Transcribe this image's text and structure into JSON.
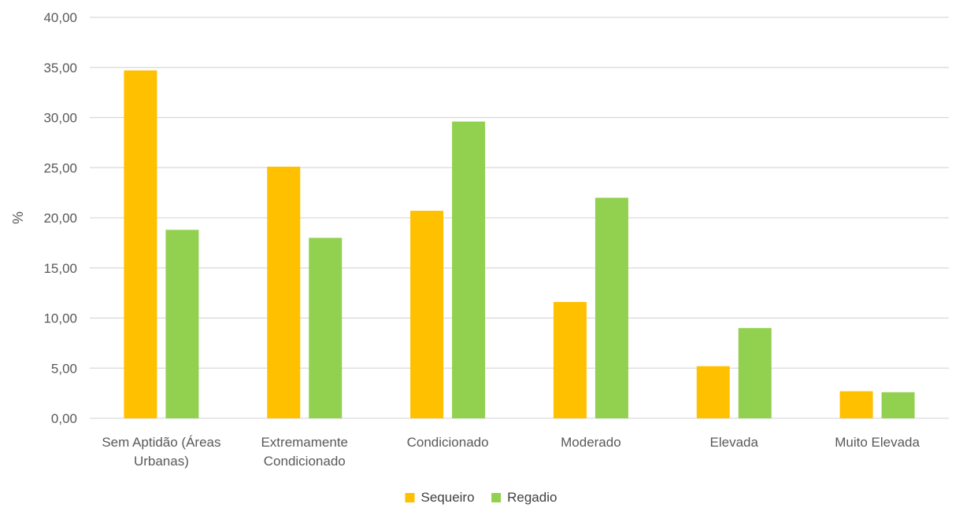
{
  "chart_data": {
    "type": "bar",
    "title": "",
    "xlabel": "",
    "ylabel": "%",
    "ylim": [
      0,
      40
    ],
    "ytick_step": 5,
    "ytick_format": "comma-2-decimals",
    "grid": true,
    "legend_position": "bottom",
    "categories": [
      [
        "Sem Aptidão (Áreas",
        "Urbanas)"
      ],
      [
        "Extremamente",
        "Condicionado"
      ],
      [
        "Condicionado"
      ],
      [
        "Moderado"
      ],
      [
        "Elevada"
      ],
      [
        "Muito Elevada"
      ]
    ],
    "series": [
      {
        "name": "Sequeiro",
        "color": "#FFC000",
        "values": [
          34.7,
          25.1,
          20.7,
          11.6,
          5.2,
          2.7
        ]
      },
      {
        "name": "Regadio",
        "color": "#92D050",
        "values": [
          18.8,
          18.0,
          29.6,
          22.0,
          9.0,
          2.6
        ]
      }
    ]
  }
}
